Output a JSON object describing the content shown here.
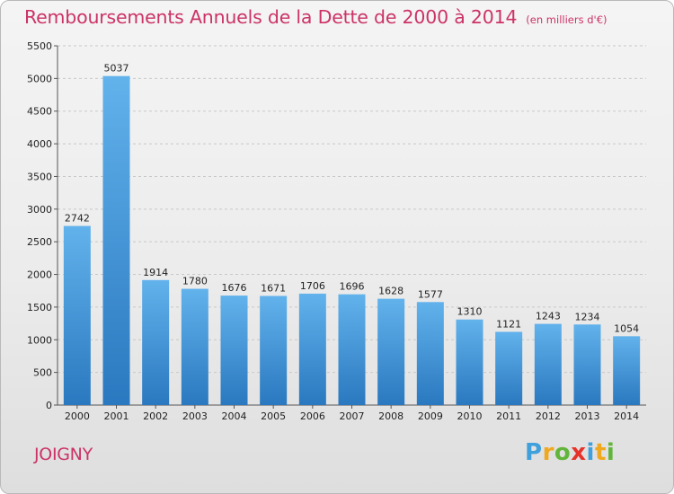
{
  "title": "Remboursements Annuels de la Dette de 2000 à 2014",
  "subtitle": "(en milliers d'€)",
  "city": "JOIGNY",
  "logo": {
    "text": "Proxiti",
    "letters": [
      {
        "ch": "P",
        "color": "#3fa0dc"
      },
      {
        "ch": "r",
        "color": "#f0a81e"
      },
      {
        "ch": "o",
        "color": "#62b53a"
      },
      {
        "ch": "x",
        "color": "#e6332a"
      },
      {
        "ch": "i",
        "color": "#3fa0dc"
      },
      {
        "ch": "t",
        "color": "#f0a81e"
      },
      {
        "ch": "i",
        "color": "#62b53a"
      }
    ]
  },
  "colors": {
    "title": "#cc3366",
    "bar_top": "#62b2ec",
    "bar_bottom": "#2a78bf",
    "grid": "#c8c8c8"
  },
  "chart_data": {
    "type": "bar",
    "categories": [
      "2000",
      "2001",
      "2002",
      "2003",
      "2004",
      "2005",
      "2006",
      "2007",
      "2008",
      "2009",
      "2010",
      "2011",
      "2012",
      "2013",
      "2014"
    ],
    "values": [
      2742,
      5037,
      1914,
      1780,
      1676,
      1671,
      1706,
      1696,
      1628,
      1577,
      1310,
      1121,
      1243,
      1234,
      1054
    ],
    "ylim": [
      0,
      5500
    ],
    "yticks": [
      0,
      500,
      1000,
      1500,
      2000,
      2500,
      3000,
      3500,
      4000,
      4500,
      5000,
      5500
    ],
    "grid": true,
    "data_labels": true
  }
}
